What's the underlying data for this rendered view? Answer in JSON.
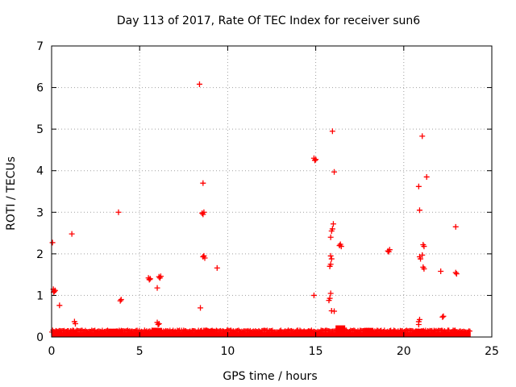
{
  "chart_data": {
    "type": "scatter",
    "title": "Day 113 of 2017, Rate Of TEC Index for receiver sun6",
    "xlabel": "GPS time / hours",
    "ylabel": "ROTI / TECUs",
    "xlim": [
      0,
      25
    ],
    "ylim": [
      0,
      7
    ],
    "x_ticks": [
      0,
      5,
      10,
      15,
      20,
      25
    ],
    "y_ticks": [
      0,
      1,
      2,
      3,
      4,
      5,
      6,
      7
    ],
    "grid": true,
    "marker": "+",
    "color": "#ff0000",
    "baseline_band": {
      "description": "dense continuous band of near-zero ROTI values",
      "x_range": [
        0,
        23.8
      ],
      "y_range": [
        0,
        0.12
      ]
    },
    "baseline_bumps": [
      {
        "x": 0.3,
        "y": 0.15
      },
      {
        "x": 1.2,
        "y": 0.12
      },
      {
        "x": 2.6,
        "y": 0.12
      },
      {
        "x": 3.5,
        "y": 0.2
      },
      {
        "x": 3.8,
        "y": 0.18
      },
      {
        "x": 6.0,
        "y": 0.22
      },
      {
        "x": 8.5,
        "y": 0.15
      },
      {
        "x": 9.0,
        "y": 0.2
      },
      {
        "x": 14.5,
        "y": 0.18
      },
      {
        "x": 16.4,
        "y": 0.28
      },
      {
        "x": 18.0,
        "y": 0.22
      },
      {
        "x": 19.2,
        "y": 0.12
      },
      {
        "x": 20.9,
        "y": 0.2
      },
      {
        "x": 22.9,
        "y": 0.15
      }
    ],
    "points": [
      {
        "x": 0.05,
        "y": 2.27
      },
      {
        "x": 0.1,
        "y": 1.15
      },
      {
        "x": 0.15,
        "y": 1.1
      },
      {
        "x": 0.2,
        "y": 1.12
      },
      {
        "x": 0.12,
        "y": 1.08
      },
      {
        "x": 0.45,
        "y": 0.76
      },
      {
        "x": 1.15,
        "y": 2.48
      },
      {
        "x": 1.3,
        "y": 0.37
      },
      {
        "x": 1.35,
        "y": 0.32
      },
      {
        "x": 3.8,
        "y": 3.0
      },
      {
        "x": 3.95,
        "y": 0.9
      },
      {
        "x": 3.9,
        "y": 0.87
      },
      {
        "x": 5.5,
        "y": 1.42
      },
      {
        "x": 5.6,
        "y": 1.4
      },
      {
        "x": 5.55,
        "y": 1.38
      },
      {
        "x": 6.0,
        "y": 1.18
      },
      {
        "x": 6.1,
        "y": 1.45
      },
      {
        "x": 6.15,
        "y": 1.42
      },
      {
        "x": 6.2,
        "y": 1.46
      },
      {
        "x": 6.0,
        "y": 0.35
      },
      {
        "x": 6.05,
        "y": 0.3
      },
      {
        "x": 6.1,
        "y": 0.32
      },
      {
        "x": 8.4,
        "y": 6.08
      },
      {
        "x": 8.45,
        "y": 0.7
      },
      {
        "x": 8.6,
        "y": 3.7
      },
      {
        "x": 8.55,
        "y": 2.98
      },
      {
        "x": 8.6,
        "y": 2.95
      },
      {
        "x": 8.65,
        "y": 3.0
      },
      {
        "x": 8.6,
        "y": 1.93
      },
      {
        "x": 8.7,
        "y": 1.9
      },
      {
        "x": 8.65,
        "y": 1.95
      },
      {
        "x": 9.4,
        "y": 1.66
      },
      {
        "x": 14.9,
        "y": 4.3
      },
      {
        "x": 15.0,
        "y": 4.27
      },
      {
        "x": 14.95,
        "y": 4.25
      },
      {
        "x": 14.9,
        "y": 1.0
      },
      {
        "x": 15.75,
        "y": 0.88
      },
      {
        "x": 15.8,
        "y": 0.93
      },
      {
        "x": 15.85,
        "y": 1.05
      },
      {
        "x": 15.8,
        "y": 1.7
      },
      {
        "x": 15.85,
        "y": 1.75
      },
      {
        "x": 15.9,
        "y": 1.88
      },
      {
        "x": 15.85,
        "y": 1.95
      },
      {
        "x": 15.85,
        "y": 2.4
      },
      {
        "x": 15.9,
        "y": 2.55
      },
      {
        "x": 15.95,
        "y": 2.6
      },
      {
        "x": 16.0,
        "y": 2.72
      },
      {
        "x": 15.9,
        "y": 0.63
      },
      {
        "x": 16.05,
        "y": 0.62
      },
      {
        "x": 15.95,
        "y": 4.95
      },
      {
        "x": 16.05,
        "y": 3.97
      },
      {
        "x": 16.35,
        "y": 2.2
      },
      {
        "x": 16.45,
        "y": 2.18
      },
      {
        "x": 16.4,
        "y": 2.23
      },
      {
        "x": 19.1,
        "y": 2.07
      },
      {
        "x": 19.2,
        "y": 2.1
      },
      {
        "x": 19.15,
        "y": 2.05
      },
      {
        "x": 20.85,
        "y": 3.62
      },
      {
        "x": 20.9,
        "y": 3.05
      },
      {
        "x": 20.9,
        "y": 1.93
      },
      {
        "x": 20.95,
        "y": 1.88
      },
      {
        "x": 21.05,
        "y": 1.97
      },
      {
        "x": 21.1,
        "y": 2.22
      },
      {
        "x": 21.15,
        "y": 2.18
      },
      {
        "x": 21.1,
        "y": 1.68
      },
      {
        "x": 21.15,
        "y": 1.64
      },
      {
        "x": 21.05,
        "y": 4.83
      },
      {
        "x": 21.3,
        "y": 3.85
      },
      {
        "x": 20.85,
        "y": 0.3
      },
      {
        "x": 20.9,
        "y": 0.42
      },
      {
        "x": 20.85,
        "y": 0.37
      },
      {
        "x": 22.1,
        "y": 1.58
      },
      {
        "x": 22.2,
        "y": 0.48
      },
      {
        "x": 22.25,
        "y": 0.5
      },
      {
        "x": 22.95,
        "y": 2.65
      },
      {
        "x": 22.95,
        "y": 1.55
      },
      {
        "x": 23.0,
        "y": 1.52
      }
    ]
  }
}
